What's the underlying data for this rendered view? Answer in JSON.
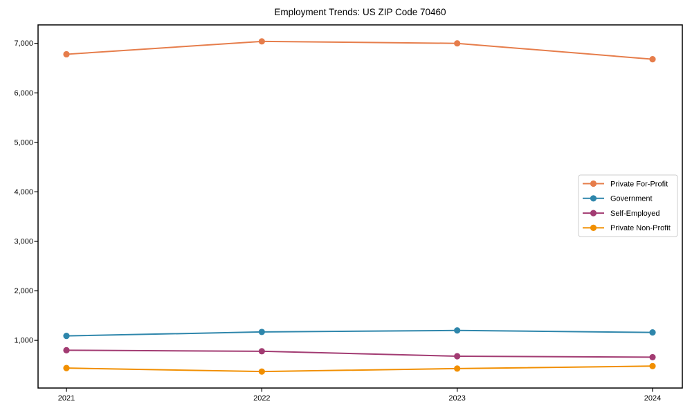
{
  "chart_data": {
    "type": "line",
    "title": "Employment Trends: US ZIP Code 70460",
    "categories": [
      "2021",
      "2022",
      "2023",
      "2024"
    ],
    "series": [
      {
        "name": "Private For-Profit",
        "color": "#E67D4B",
        "values": [
          6780,
          7040,
          7000,
          6680
        ]
      },
      {
        "name": "Government",
        "color": "#2E86AB",
        "values": [
          1090,
          1170,
          1200,
          1160
        ]
      },
      {
        "name": "Self-Employed",
        "color": "#A23B72",
        "values": [
          800,
          780,
          680,
          660
        ]
      },
      {
        "name": "Private Non-Profit",
        "color": "#F18F01",
        "values": [
          440,
          370,
          430,
          480
        ]
      }
    ],
    "xlabel": "",
    "ylabel": "",
    "ylim": [
      37,
      7373
    ],
    "yticks": [
      1000,
      2000,
      3000,
      4000,
      5000,
      6000,
      7000
    ],
    "grid": false,
    "marker": "circle",
    "legend_position": "center-right",
    "colors": {
      "text": "#000000",
      "spine": "#000000",
      "background": "#ffffff",
      "legend_border": "#cccccc",
      "legend_background": "#ffffff"
    }
  }
}
